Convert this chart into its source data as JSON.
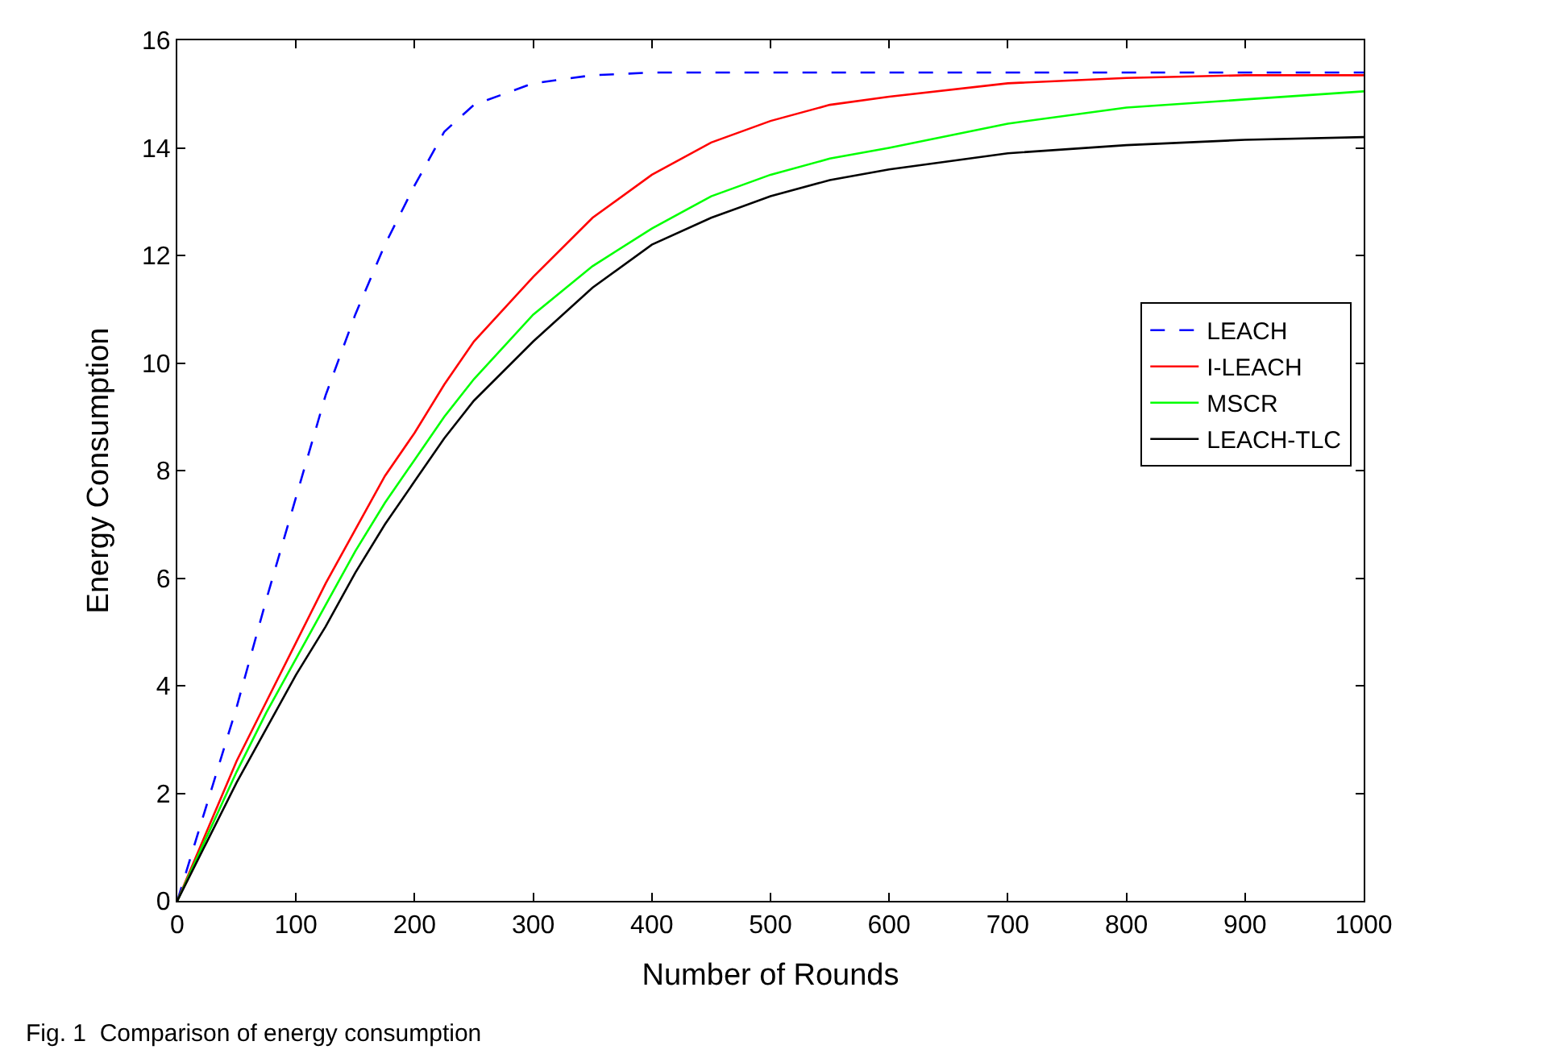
{
  "chart_data": {
    "type": "line",
    "xlabel": "Number of Rounds",
    "ylabel": "Energy Consumption",
    "x": [
      0,
      25,
      50,
      75,
      100,
      125,
      150,
      175,
      200,
      225,
      250,
      300,
      350,
      400,
      450,
      500,
      550,
      600,
      700,
      800,
      900,
      1000
    ],
    "series": [
      {
        "name": "LEACH",
        "color": "#0000ff",
        "line_style": "dashed",
        "values": [
          0,
          1.8,
          3.6,
          5.6,
          7.5,
          9.4,
          10.9,
          12.2,
          13.3,
          14.3,
          14.8,
          15.2,
          15.35,
          15.4,
          15.4,
          15.4,
          15.4,
          15.4,
          15.4,
          15.4,
          15.4,
          15.4
        ]
      },
      {
        "name": "I-LEACH",
        "color": "#ff0000",
        "line_style": "solid",
        "values": [
          0,
          1.3,
          2.6,
          3.7,
          4.8,
          5.9,
          6.9,
          7.9,
          8.7,
          9.6,
          10.4,
          11.6,
          12.7,
          13.5,
          14.1,
          14.5,
          14.8,
          14.95,
          15.2,
          15.3,
          15.35,
          15.35
        ]
      },
      {
        "name": "MSCR",
        "color": "#00ff00",
        "line_style": "solid",
        "values": [
          0,
          1.2,
          2.4,
          3.5,
          4.5,
          5.5,
          6.5,
          7.4,
          8.2,
          9.0,
          9.7,
          10.9,
          11.8,
          12.5,
          13.1,
          13.5,
          13.8,
          14.0,
          14.45,
          14.75,
          14.9,
          15.05
        ]
      },
      {
        "name": "LEACH-TLC",
        "color": "#000000",
        "line_style": "solid",
        "values": [
          0,
          1.1,
          2.2,
          3.2,
          4.2,
          5.1,
          6.1,
          7.0,
          7.8,
          8.6,
          9.3,
          10.4,
          11.4,
          12.2,
          12.7,
          13.1,
          13.4,
          13.6,
          13.9,
          14.05,
          14.15,
          14.2
        ]
      }
    ],
    "xlim": [
      0,
      1000
    ],
    "xticks": [
      0,
      100,
      200,
      300,
      400,
      500,
      600,
      700,
      800,
      900,
      1000
    ],
    "ylim": [
      0,
      16
    ],
    "yticks": [
      0,
      2,
      4,
      6,
      8,
      10,
      12,
      14,
      16
    ],
    "grid": false,
    "legend": "right",
    "marker": "none",
    "annotations": [
      "Fig. 1  Comparison of energy consumption"
    ]
  }
}
